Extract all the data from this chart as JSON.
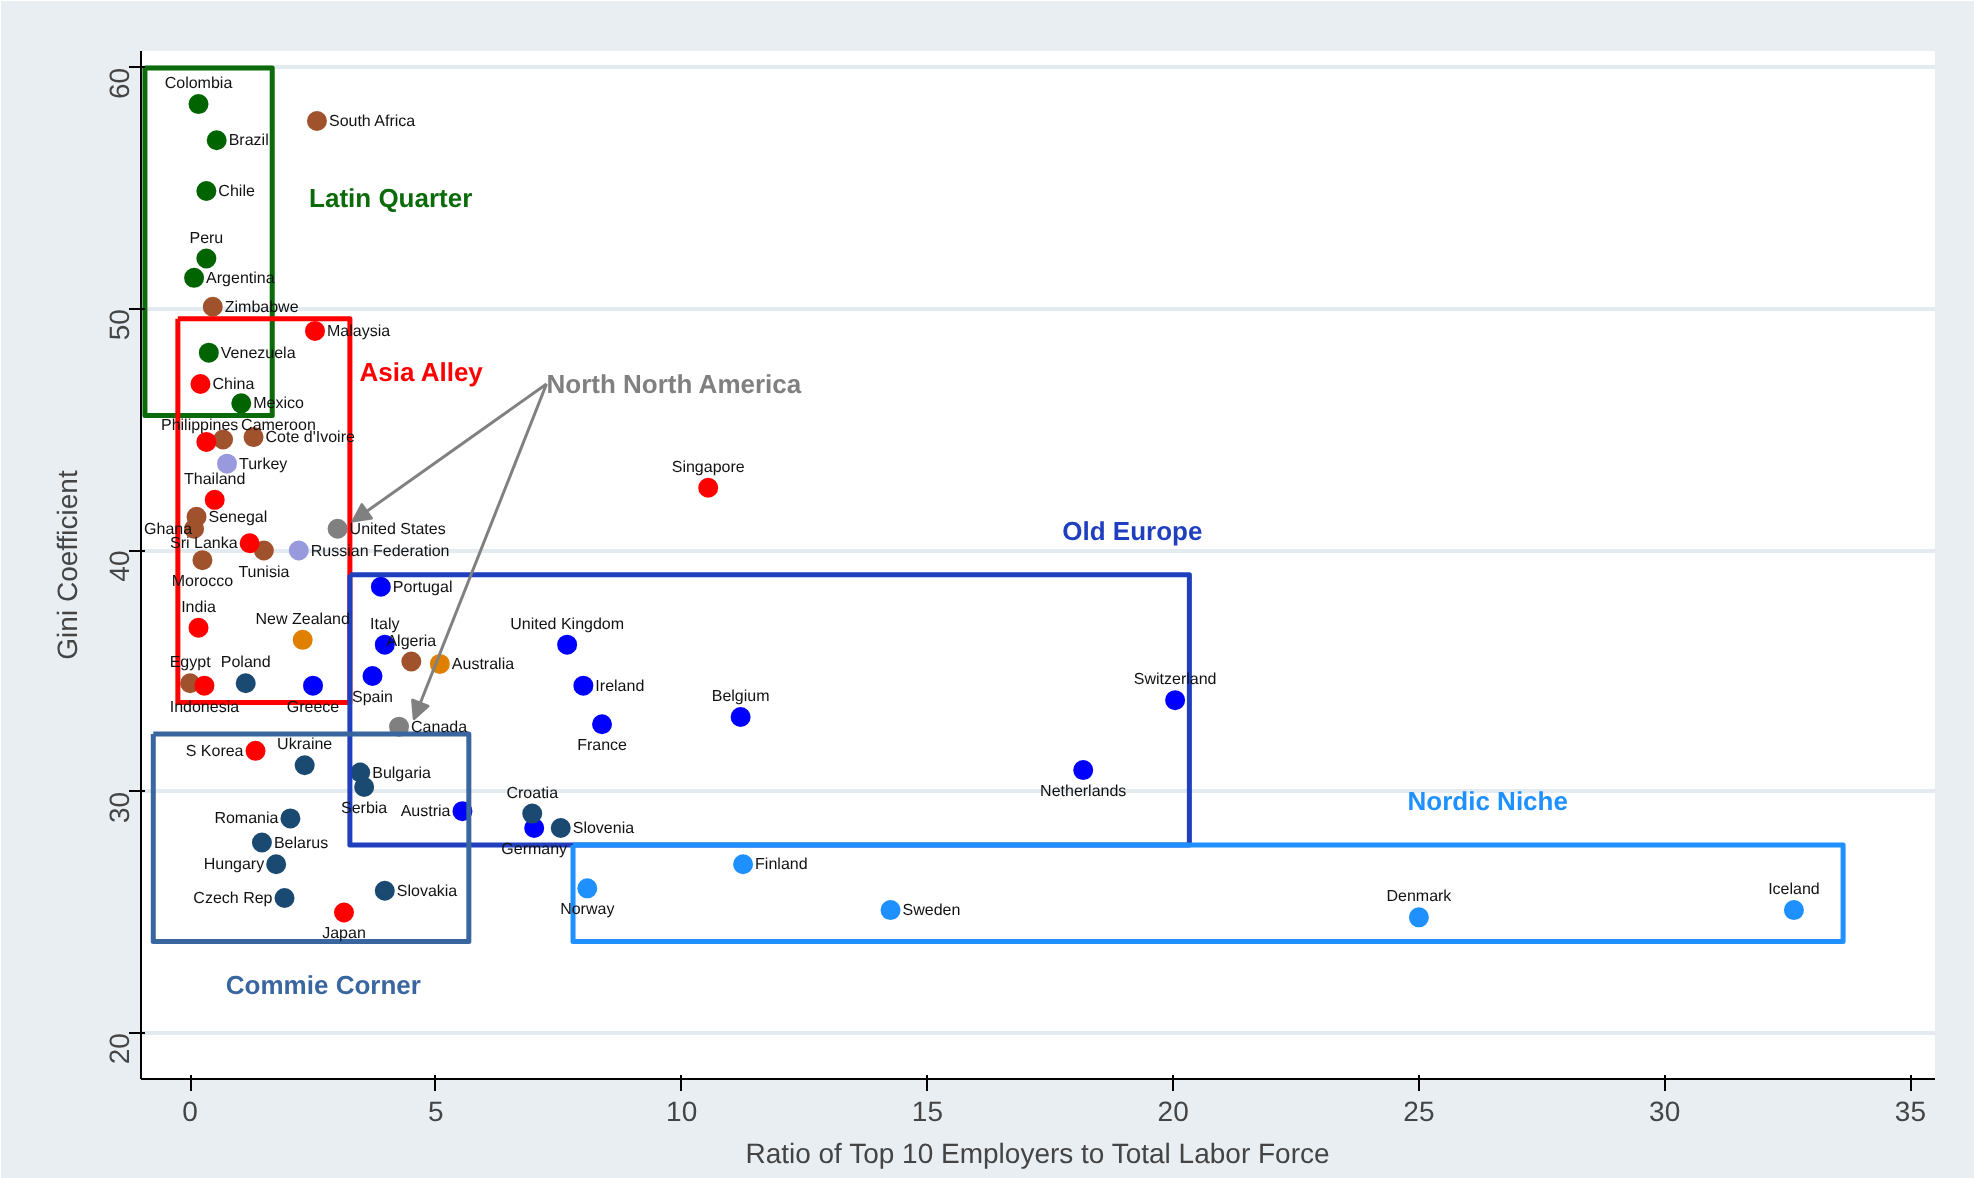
{
  "chart_data": {
    "type": "scatter",
    "xlabel": "Ratio of Top 10 Employers to Total Labor Force",
    "ylabel": "Gini Coefficient",
    "xlim": [
      -1,
      35.5
    ],
    "ylim": [
      18.1,
      60.7
    ],
    "xticks": [
      0,
      5,
      10,
      15,
      20,
      25,
      30,
      35
    ],
    "yticks": [
      20,
      30,
      40,
      50,
      60
    ],
    "grid": "y",
    "legend": false,
    "marker": "circle",
    "annotations": [
      "Latin Quarter",
      "Asia Alley",
      "Old Europe",
      "Commie Corner",
      "Nordic Niche"
    ],
    "series": [
      {
        "color": "#006400",
        "x": [
          0.17,
          0.54,
          0.33,
          0.33,
          0.08,
          0.38,
          1.04
        ],
        "values": [
          58.5,
          57.0,
          54.9,
          52.1,
          51.3,
          48.2,
          46.1
        ],
        "value_labels": [
          "Colombia",
          "Brazil",
          "Chile",
          "Peru",
          "Argentina",
          "Venezuela",
          "Mexico"
        ]
      },
      {
        "color": "#a0522d",
        "x": [
          2.58,
          0.46,
          0.67,
          1.29,
          0.13,
          0.08,
          1.5,
          0.25,
          0.0,
          4.5
        ],
        "values": [
          57.8,
          50.1,
          44.6,
          44.7,
          41.4,
          40.9,
          40.0,
          39.6,
          34.5,
          35.4
        ],
        "value_labels": [
          "South Africa",
          "Zimbabwe",
          "Cameroon",
          "Cote d'Ivoire",
          "Senegal",
          "Ghana",
          "Tunisia",
          "Morocco",
          "Egypt",
          "Algeria"
        ]
      },
      {
        "color": "#ff0000",
        "x": [
          2.54,
          0.21,
          0.33,
          0.5,
          1.21,
          0.17,
          0.29,
          1.33,
          3.13,
          10.54
        ],
        "values": [
          49.1,
          46.9,
          44.5,
          42.1,
          40.3,
          36.8,
          34.4,
          31.7,
          25.0,
          42.6
        ],
        "value_labels": [
          "Malaysia",
          "China",
          "Philippines",
          "Thailand",
          "Sri Lanka",
          "India",
          "Indonesia",
          "S Korea",
          "Japan",
          "Singapore"
        ]
      },
      {
        "color": "#9999dd",
        "x": [
          0.75,
          2.21
        ],
        "values": [
          43.6,
          40.0
        ],
        "value_labels": [
          "Turkey",
          "Russian Federation"
        ]
      },
      {
        "color": "#e08000",
        "x": [
          2.29,
          5.08
        ],
        "values": [
          36.3,
          35.3
        ],
        "value_labels": [
          "New Zealand",
          "Australia"
        ]
      },
      {
        "name": "North North America",
        "color": "#808080",
        "x": [
          3.0,
          4.25
        ],
        "values": [
          40.9,
          32.7
        ],
        "value_labels": [
          "United States",
          "Canada"
        ]
      },
      {
        "color": "#0000ff",
        "x": [
          2.5,
          3.88,
          3.96,
          3.71,
          7.67,
          8.0,
          8.38,
          11.2,
          20.04,
          18.17,
          5.54,
          7.0
        ],
        "values": [
          34.4,
          38.5,
          36.1,
          34.8,
          36.1,
          34.4,
          32.8,
          33.1,
          33.8,
          30.9,
          29.2,
          28.5
        ],
        "value_labels": [
          "Greece",
          "Portugal",
          "Italy",
          "Spain",
          "United Kingdom",
          "Ireland",
          "France",
          "Belgium",
          "Switzerland",
          "Netherlands",
          "Austria",
          "Germany"
        ]
      },
      {
        "color": "#1a4a72",
        "x": [
          1.13,
          2.33,
          3.46,
          3.54,
          2.04,
          1.46,
          1.75,
          1.92,
          3.96,
          6.96,
          7.54
        ],
        "values": [
          34.5,
          31.1,
          30.8,
          30.2,
          28.9,
          27.9,
          27.0,
          25.6,
          25.9,
          29.1,
          28.5
        ],
        "value_labels": [
          "Poland",
          "Ukraine",
          "Bulgaria",
          "Serbia",
          "Romania",
          "Belarus",
          "Hungary",
          "Czech Rep",
          "Slovakia",
          "Croatia",
          "Slovenia"
        ]
      },
      {
        "color": "#1e90ff",
        "x": [
          11.25,
          8.08,
          14.25,
          25.0,
          32.63
        ],
        "values": [
          27.0,
          26.0,
          25.1,
          24.8,
          25.1
        ],
        "value_labels": [
          "Finland",
          "Norway",
          "Sweden",
          "Denmark",
          "Iceland"
        ]
      }
    ]
  }
}
